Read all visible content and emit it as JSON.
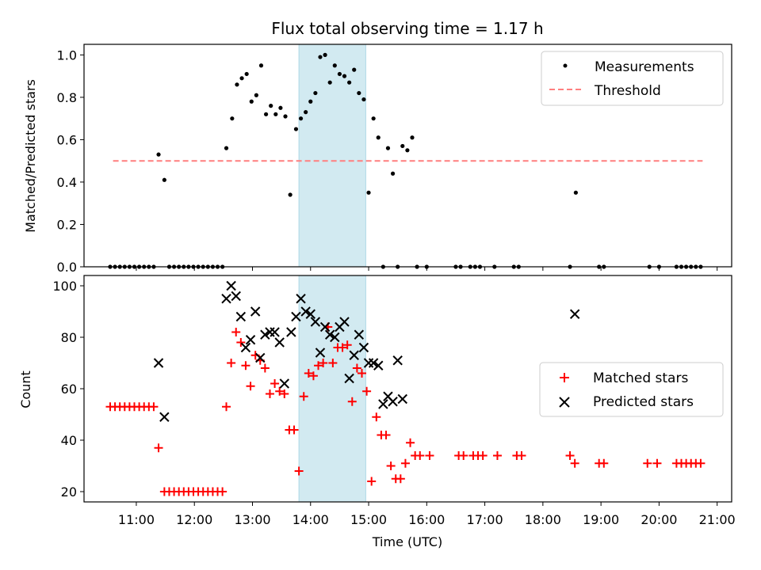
{
  "title": "Flux total observing time = 1.17 h",
  "colors": {
    "measurement": "#000000",
    "threshold": "#ff7f7f",
    "matched": "#ff0000",
    "predicted": "#000000",
    "highlight": "#add8e6"
  },
  "chart_data": [
    {
      "type": "scatter",
      "ylabel": "Matched/Predicted stars",
      "xlabel": "",
      "xlim": [
        "10:06",
        "21:15"
      ],
      "ylim": [
        0,
        1.05
      ],
      "yticks": [
        0,
        0.2,
        0.4,
        0.6,
        0.8,
        1.0
      ],
      "ytick_labels": [
        "0.0",
        "0.2",
        "0.4",
        "0.6",
        "0.8",
        "1.0"
      ],
      "highlight_span": [
        "13:48",
        "14:57"
      ],
      "legend": "top-right",
      "legend_entries": [
        "Measurements",
        "Threshold"
      ],
      "threshold": {
        "name": "Threshold",
        "value": 0.5,
        "x_range": [
          "10:36",
          "20:45"
        ]
      },
      "series": [
        {
          "name": "Measurements",
          "points": [
            [
              "10:33",
              0
            ],
            [
              "10:38",
              0
            ],
            [
              "10:43",
              0
            ],
            [
              "10:48",
              0
            ],
            [
              "10:53",
              0
            ],
            [
              "10:58",
              0
            ],
            [
              "11:03",
              0
            ],
            [
              "11:08",
              0
            ],
            [
              "11:13",
              0
            ],
            [
              "11:18",
              0
            ],
            [
              "11:23",
              0.53
            ],
            [
              "11:29",
              0.41
            ],
            [
              "11:34",
              0
            ],
            [
              "11:39",
              0
            ],
            [
              "11:44",
              0
            ],
            [
              "11:49",
              0
            ],
            [
              "11:54",
              0
            ],
            [
              "11:59",
              0
            ],
            [
              "12:04",
              0
            ],
            [
              "12:09",
              0
            ],
            [
              "12:14",
              0
            ],
            [
              "12:19",
              0
            ],
            [
              "12:24",
              0
            ],
            [
              "12:29",
              0
            ],
            [
              "12:33",
              0.56
            ],
            [
              "12:39",
              0.7
            ],
            [
              "12:44",
              0.86
            ],
            [
              "12:49",
              0.89
            ],
            [
              "12:54",
              0.91
            ],
            [
              "12:59",
              0.78
            ],
            [
              "13:04",
              0.81
            ],
            [
              "13:09",
              0.95
            ],
            [
              "13:14",
              0.72
            ],
            [
              "13:19",
              0.76
            ],
            [
              "13:24",
              0.72
            ],
            [
              "13:29",
              0.75
            ],
            [
              "13:34",
              0.71
            ],
            [
              "13:39",
              0.34
            ],
            [
              "13:45",
              0.65
            ],
            [
              "13:50",
              0.7
            ],
            [
              "13:55",
              0.73
            ],
            [
              "14:00",
              0.78
            ],
            [
              "14:05",
              0.82
            ],
            [
              "14:10",
              0.99
            ],
            [
              "14:15",
              1.0
            ],
            [
              "14:20",
              0.87
            ],
            [
              "14:25",
              0.95
            ],
            [
              "14:30",
              0.91
            ],
            [
              "14:35",
              0.9
            ],
            [
              "14:40",
              0.87
            ],
            [
              "14:45",
              0.93
            ],
            [
              "14:50",
              0.82
            ],
            [
              "14:55",
              0.79
            ],
            [
              "15:00",
              0.35
            ],
            [
              "15:05",
              0.7
            ],
            [
              "15:10",
              0.61
            ],
            [
              "15:15",
              0
            ],
            [
              "15:20",
              0.56
            ],
            [
              "15:25",
              0.44
            ],
            [
              "15:30",
              0
            ],
            [
              "15:35",
              0.57
            ],
            [
              "15:40",
              0.55
            ],
            [
              "15:45",
              0.61
            ],
            [
              "15:50",
              0
            ],
            [
              "16:00",
              0
            ],
            [
              "16:30",
              0
            ],
            [
              "16:35",
              0
            ],
            [
              "16:45",
              0
            ],
            [
              "16:50",
              0
            ],
            [
              "16:55",
              0
            ],
            [
              "17:10",
              0
            ],
            [
              "17:30",
              0
            ],
            [
              "17:35",
              0
            ],
            [
              "18:28",
              0
            ],
            [
              "18:34",
              0.35
            ],
            [
              "18:58",
              0
            ],
            [
              "19:03",
              0
            ],
            [
              "19:50",
              0
            ],
            [
              "20:00",
              0
            ],
            [
              "20:18",
              0
            ],
            [
              "20:23",
              0
            ],
            [
              "20:28",
              0
            ],
            [
              "20:33",
              0
            ],
            [
              "20:38",
              0
            ],
            [
              "20:43",
              0
            ]
          ]
        }
      ]
    },
    {
      "type": "scatter",
      "ylabel": "Count",
      "xlabel": "Time (UTC)",
      "xlim": [
        "10:06",
        "21:15"
      ],
      "ylim": [
        16,
        104
      ],
      "yticks": [
        20,
        40,
        60,
        80,
        100
      ],
      "ytick_labels": [
        "20",
        "40",
        "60",
        "80",
        "100"
      ],
      "xticks": [
        "11:00",
        "12:00",
        "13:00",
        "14:00",
        "15:00",
        "16:00",
        "17:00",
        "18:00",
        "19:00",
        "20:00",
        "21:00"
      ],
      "xtick_labels": [
        "11:00",
        "12:00",
        "13:00",
        "14:00",
        "15:00",
        "16:00",
        "17:00",
        "18:00",
        "19:00",
        "20:00",
        "21:00"
      ],
      "highlight_span": [
        "13:48",
        "14:57"
      ],
      "legend": "center-right",
      "legend_entries": [
        "Matched stars",
        "Predicted stars"
      ],
      "series": [
        {
          "name": "Matched stars",
          "points": [
            [
              "10:33",
              53
            ],
            [
              "10:38",
              53
            ],
            [
              "10:43",
              53
            ],
            [
              "10:48",
              53
            ],
            [
              "10:53",
              53
            ],
            [
              "10:58",
              53
            ],
            [
              "11:03",
              53
            ],
            [
              "11:08",
              53
            ],
            [
              "11:13",
              53
            ],
            [
              "11:18",
              53
            ],
            [
              "11:23",
              37
            ],
            [
              "11:29",
              20
            ],
            [
              "11:34",
              20
            ],
            [
              "11:39",
              20
            ],
            [
              "11:44",
              20
            ],
            [
              "11:49",
              20
            ],
            [
              "11:54",
              20
            ],
            [
              "11:59",
              20
            ],
            [
              "12:04",
              20
            ],
            [
              "12:09",
              20
            ],
            [
              "12:14",
              20
            ],
            [
              "12:19",
              20
            ],
            [
              "12:24",
              20
            ],
            [
              "12:29",
              20
            ],
            [
              "12:33",
              53
            ],
            [
              "12:38",
              70
            ],
            [
              "12:43",
              82
            ],
            [
              "12:48",
              78
            ],
            [
              "12:53",
              69
            ],
            [
              "12:58",
              61
            ],
            [
              "13:03",
              73
            ],
            [
              "13:08",
              71
            ],
            [
              "13:13",
              68
            ],
            [
              "13:18",
              58
            ],
            [
              "13:23",
              62
            ],
            [
              "13:28",
              59
            ],
            [
              "13:33",
              58
            ],
            [
              "13:38",
              44
            ],
            [
              "13:43",
              44
            ],
            [
              "13:48",
              28
            ],
            [
              "13:53",
              57
            ],
            [
              "13:58",
              66
            ],
            [
              "14:03",
              65
            ],
            [
              "14:08",
              69
            ],
            [
              "14:13",
              70
            ],
            [
              "14:18",
              84
            ],
            [
              "14:23",
              70
            ],
            [
              "14:28",
              76
            ],
            [
              "14:33",
              76
            ],
            [
              "14:38",
              77
            ],
            [
              "14:43",
              55
            ],
            [
              "14:48",
              68
            ],
            [
              "14:53",
              66
            ],
            [
              "14:58",
              59
            ],
            [
              "15:03",
              24
            ],
            [
              "15:08",
              49
            ],
            [
              "15:13",
              42
            ],
            [
              "15:18",
              42
            ],
            [
              "15:23",
              30
            ],
            [
              "15:28",
              25
            ],
            [
              "15:33",
              25
            ],
            [
              "15:38",
              31
            ],
            [
              "15:43",
              39
            ],
            [
              "15:48",
              34
            ],
            [
              "15:53",
              34
            ],
            [
              "16:03",
              34
            ],
            [
              "16:33",
              34
            ],
            [
              "16:38",
              34
            ],
            [
              "16:48",
              34
            ],
            [
              "16:53",
              34
            ],
            [
              "16:58",
              34
            ],
            [
              "17:13",
              34
            ],
            [
              "17:33",
              34
            ],
            [
              "17:38",
              34
            ],
            [
              "18:28",
              34
            ],
            [
              "18:33",
              31
            ],
            [
              "18:58",
              31
            ],
            [
              "19:03",
              31
            ],
            [
              "19:48",
              31
            ],
            [
              "19:58",
              31
            ],
            [
              "20:18",
              31
            ],
            [
              "20:23",
              31
            ],
            [
              "20:28",
              31
            ],
            [
              "20:33",
              31
            ],
            [
              "20:38",
              31
            ],
            [
              "20:43",
              31
            ]
          ]
        },
        {
          "name": "Predicted stars",
          "points": [
            [
              "11:23",
              70
            ],
            [
              "11:29",
              49
            ],
            [
              "12:33",
              95
            ],
            [
              "12:38",
              100
            ],
            [
              "12:43",
              96
            ],
            [
              "12:48",
              88
            ],
            [
              "12:53",
              76
            ],
            [
              "12:58",
              79
            ],
            [
              "13:03",
              90
            ],
            [
              "13:08",
              72
            ],
            [
              "13:13",
              81
            ],
            [
              "13:18",
              82
            ],
            [
              "13:23",
              82
            ],
            [
              "13:28",
              78
            ],
            [
              "13:33",
              62
            ],
            [
              "13:40",
              82
            ],
            [
              "13:45",
              88
            ],
            [
              "13:50",
              95
            ],
            [
              "13:55",
              90
            ],
            [
              "14:00",
              89
            ],
            [
              "14:05",
              86
            ],
            [
              "14:10",
              74
            ],
            [
              "14:15",
              84
            ],
            [
              "14:20",
              81
            ],
            [
              "14:25",
              80
            ],
            [
              "14:30",
              84
            ],
            [
              "14:35",
              86
            ],
            [
              "14:40",
              64
            ],
            [
              "14:45",
              73
            ],
            [
              "14:50",
              81
            ],
            [
              "14:55",
              76
            ],
            [
              "15:00",
              70
            ],
            [
              "15:05",
              70
            ],
            [
              "15:10",
              69
            ],
            [
              "15:15",
              54
            ],
            [
              "15:20",
              57
            ],
            [
              "15:25",
              55
            ],
            [
              "15:30",
              71
            ],
            [
              "15:35",
              56
            ],
            [
              "18:33",
              89
            ]
          ]
        }
      ]
    }
  ]
}
